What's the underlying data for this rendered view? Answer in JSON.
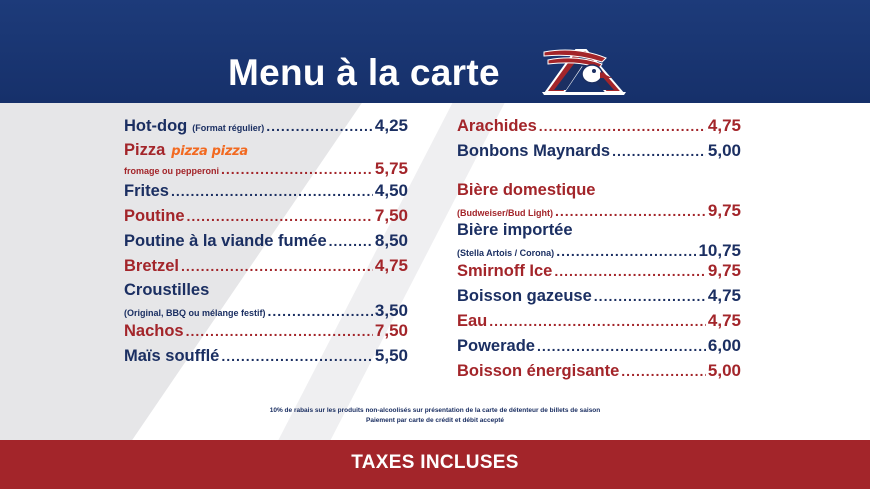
{
  "header": {
    "title": "Menu à la carte"
  },
  "menu_left": [
    {
      "name": "Hot-dog",
      "note": "(Format régulier)",
      "price": "4,25",
      "color": "#1b2f62"
    },
    {
      "name": "Pizza",
      "brand": "pizza pizza",
      "note": "fromage ou pepperoni",
      "price": "5,75",
      "color": "#a3252a"
    },
    {
      "name": "Frites",
      "price": "4,50",
      "color": "#1b2f62"
    },
    {
      "name": "Poutine",
      "price": "7,50",
      "color": "#a3252a"
    },
    {
      "name": "Poutine à la viande fumée",
      "price": "8,50",
      "color": "#1b2f62"
    },
    {
      "name": "Bretzel",
      "price": "4,75",
      "color": "#a3252a"
    },
    {
      "name": "Croustilles",
      "note": "(Original, BBQ ou mélange festif)",
      "price": "3,50",
      "color": "#1b2f62"
    },
    {
      "name": "Nachos",
      "price": "7,50",
      "color": "#a3252a"
    },
    {
      "name": "Maïs soufflé",
      "price": "5,50",
      "color": "#1b2f62"
    }
  ],
  "menu_right": [
    {
      "name": "Arachides",
      "price": "4,75",
      "color": "#a3252a"
    },
    {
      "name": "Bonbons Maynards",
      "price": "5,00",
      "color": "#1b2f62"
    },
    {
      "name": "Bière domestique",
      "note": "(Budweiser/Bud Light)",
      "price": "9,75",
      "color": "#a3252a"
    },
    {
      "name": "Bière importée",
      "note": "(Stella Artois / Corona)",
      "price": "10,75",
      "color": "#1b2f62"
    },
    {
      "name": "Smirnoff Ice",
      "price": "9,75",
      "color": "#a3252a"
    },
    {
      "name": "Boisson gazeuse",
      "price": "4,75",
      "color": "#1b2f62"
    },
    {
      "name": "Eau",
      "price": "4,75",
      "color": "#a3252a"
    },
    {
      "name": "Powerade",
      "price": "6,00",
      "color": "#1b2f62"
    },
    {
      "name": "Boisson énergisante",
      "price": "5,00",
      "color": "#a3252a"
    }
  ],
  "footnotes": {
    "line1": "10% de rabais sur les produits non-alcoolisés sur présentation de la carte de détenteur de billets de saison",
    "line2": "Paiement par carte de crédit et débit accepté"
  },
  "footer": {
    "label": "TAXES INCLUSES"
  },
  "colors": {
    "navy": "#1b2f62",
    "red": "#a3252a",
    "header": "#1d3b7a",
    "pizza_orange": "#f26a21"
  },
  "icons": {
    "logo": "alouettes-logo-icon"
  }
}
